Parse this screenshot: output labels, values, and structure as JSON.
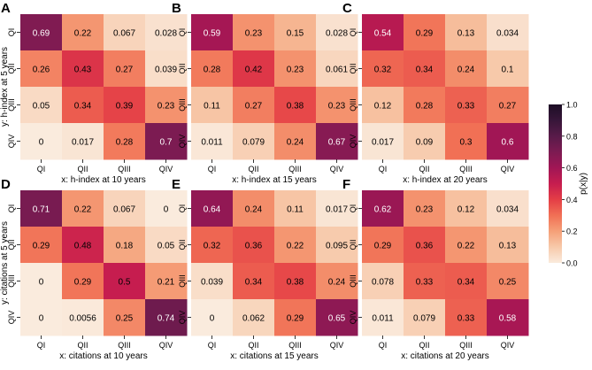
{
  "colorbar": {
    "label": "p(x|y)",
    "ticks": [
      "0.0",
      "0.2",
      "0.4",
      "0.6",
      "0.8",
      "1.0"
    ],
    "tick_values": [
      0.0,
      0.2,
      0.4,
      0.6,
      0.8,
      1.0
    ]
  },
  "chart_data": [
    {
      "type": "heatmap",
      "panel": "A",
      "xlabel": "x: h-index at 10 years",
      "ylabel": "y: h-index at 5 years",
      "x_categories": [
        "QI",
        "QII",
        "QIII",
        "QIV"
      ],
      "y_categories": [
        "QI",
        "QII",
        "QIII",
        "QIV"
      ],
      "values": [
        [
          0.69,
          0.22,
          0.067,
          0.028
        ],
        [
          0.26,
          0.43,
          0.27,
          0.039
        ],
        [
          0.05,
          0.34,
          0.39,
          0.23
        ],
        [
          0,
          0.017,
          0.28,
          0.7
        ]
      ],
      "labels": [
        [
          "0.69",
          "0.22",
          "0.067",
          "0.028"
        ],
        [
          "0.26",
          "0.43",
          "0.27",
          "0.039"
        ],
        [
          "0.05",
          "0.34",
          "0.39",
          "0.23"
        ],
        [
          "0",
          "0.017",
          "0.28",
          "0.7"
        ]
      ]
    },
    {
      "type": "heatmap",
      "panel": "B",
      "xlabel": "x: h-index at 15 years",
      "ylabel": "",
      "x_categories": [
        "QI",
        "QII",
        "QIII",
        "QIV"
      ],
      "y_categories": [
        "QI",
        "QII",
        "QIII",
        "QIV"
      ],
      "values": [
        [
          0.59,
          0.23,
          0.15,
          0.028
        ],
        [
          0.28,
          0.42,
          0.23,
          0.061
        ],
        [
          0.11,
          0.27,
          0.38,
          0.23
        ],
        [
          0.011,
          0.079,
          0.24,
          0.67
        ]
      ],
      "labels": [
        [
          "0.59",
          "0.23",
          "0.15",
          "0.028"
        ],
        [
          "0.28",
          "0.42",
          "0.23",
          "0.061"
        ],
        [
          "0.11",
          "0.27",
          "0.38",
          "0.23"
        ],
        [
          "0.011",
          "0.079",
          "0.24",
          "0.67"
        ]
      ]
    },
    {
      "type": "heatmap",
      "panel": "C",
      "xlabel": "x: h-index at 20 years",
      "ylabel": "",
      "x_categories": [
        "QI",
        "QII",
        "QIII",
        "QIV"
      ],
      "y_categories": [
        "QI",
        "QII",
        "QIII",
        "QIV"
      ],
      "values": [
        [
          0.54,
          0.29,
          0.13,
          0.034
        ],
        [
          0.32,
          0.34,
          0.24,
          0.1
        ],
        [
          0.12,
          0.28,
          0.33,
          0.27
        ],
        [
          0.017,
          0.09,
          0.3,
          0.6
        ]
      ],
      "labels": [
        [
          "0.54",
          "0.29",
          "0.13",
          "0.034"
        ],
        [
          "0.32",
          "0.34",
          "0.24",
          "0.1"
        ],
        [
          "0.12",
          "0.28",
          "0.33",
          "0.27"
        ],
        [
          "0.017",
          "0.09",
          "0.3",
          "0.6"
        ]
      ]
    },
    {
      "type": "heatmap",
      "panel": "D",
      "xlabel": "x: citations at 10 years",
      "ylabel": "y: citations at 5 years",
      "x_categories": [
        "QI",
        "QII",
        "QIII",
        "QIV"
      ],
      "y_categories": [
        "QI",
        "QII",
        "QIII",
        "QIV"
      ],
      "values": [
        [
          0.71,
          0.22,
          0.067,
          0
        ],
        [
          0.29,
          0.48,
          0.18,
          0.05
        ],
        [
          0,
          0.29,
          0.5,
          0.21
        ],
        [
          0,
          0.0056,
          0.25,
          0.74
        ]
      ],
      "labels": [
        [
          "0.71",
          "0.22",
          "0.067",
          "0"
        ],
        [
          "0.29",
          "0.48",
          "0.18",
          "0.05"
        ],
        [
          "0",
          "0.29",
          "0.5",
          "0.21"
        ],
        [
          "0",
          "0.0056",
          "0.25",
          "0.74"
        ]
      ]
    },
    {
      "type": "heatmap",
      "panel": "E",
      "xlabel": "x: citations at 15 years",
      "ylabel": "",
      "x_categories": [
        "QI",
        "QII",
        "QIII",
        "QIV"
      ],
      "y_categories": [
        "QI",
        "QII",
        "QIII",
        "QIV"
      ],
      "values": [
        [
          0.64,
          0.24,
          0.11,
          0.017
        ],
        [
          0.32,
          0.36,
          0.22,
          0.095
        ],
        [
          0.039,
          0.34,
          0.38,
          0.24
        ],
        [
          0,
          0.062,
          0.29,
          0.65
        ]
      ],
      "labels": [
        [
          "0.64",
          "0.24",
          "0.11",
          "0.017"
        ],
        [
          "0.32",
          "0.36",
          "0.22",
          "0.095"
        ],
        [
          "0.039",
          "0.34",
          "0.38",
          "0.24"
        ],
        [
          "0",
          "0.062",
          "0.29",
          "0.65"
        ]
      ]
    },
    {
      "type": "heatmap",
      "panel": "F",
      "xlabel": "x: citations at 20 years",
      "ylabel": "",
      "x_categories": [
        "QI",
        "QII",
        "QIII",
        "QIV"
      ],
      "y_categories": [
        "QI",
        "QII",
        "QIII",
        "QIV"
      ],
      "values": [
        [
          0.62,
          0.23,
          0.12,
          0.034
        ],
        [
          0.29,
          0.36,
          0.22,
          0.13
        ],
        [
          0.078,
          0.33,
          0.34,
          0.25
        ],
        [
          0.011,
          0.079,
          0.33,
          0.58
        ]
      ],
      "labels": [
        [
          "0.62",
          "0.23",
          "0.12",
          "0.034"
        ],
        [
          "0.29",
          "0.36",
          "0.22",
          "0.13"
        ],
        [
          "0.078",
          "0.33",
          "0.34",
          "0.25"
        ],
        [
          "0.011",
          "0.079",
          "0.33",
          "0.58"
        ]
      ]
    }
  ]
}
